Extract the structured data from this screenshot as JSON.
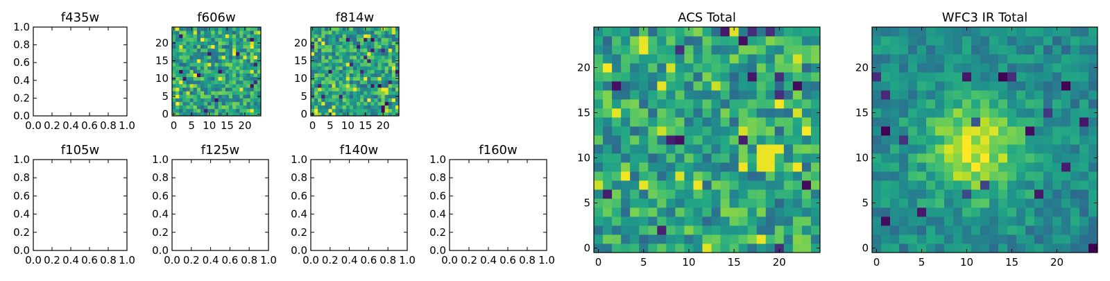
{
  "figure": {
    "panels": [
      "f435w",
      "f606w",
      "f814w",
      "ACS Total",
      "f105w",
      "f125w",
      "f140w",
      "f160w",
      "WFC3 IR Total"
    ]
  },
  "chart_data": [
    {
      "type": "heatmap",
      "title": "f435w",
      "empty": true,
      "xlim": [
        0,
        1
      ],
      "ylim": [
        0,
        1
      ],
      "xticks": [
        0,
        0.2,
        0.4,
        0.6,
        0.8,
        1
      ],
      "xtick_labels": [
        "0.0",
        "0.2",
        "0.4",
        "0.6",
        "0.8",
        "1.0"
      ],
      "yticks": [
        0,
        0.2,
        0.4,
        0.6,
        0.8,
        1
      ],
      "ytick_labels": [
        "0.0",
        "0.2",
        "0.4",
        "0.6",
        "0.8",
        "1.0"
      ]
    },
    {
      "type": "heatmap",
      "title": "f606w",
      "grid_size": 25,
      "seed": 606,
      "structure": "noise",
      "colormap": "viridis",
      "xlim": [
        -0.5,
        24.5
      ],
      "ylim": [
        -0.5,
        24.5
      ],
      "xticks": [
        0,
        5,
        10,
        15,
        20
      ],
      "xtick_labels": [
        "0",
        "5",
        "10",
        "15",
        "20"
      ],
      "yticks": [
        0,
        5,
        10,
        15,
        20
      ],
      "ytick_labels": [
        "0",
        "5",
        "10",
        "15",
        "20"
      ]
    },
    {
      "type": "heatmap",
      "title": "f814w",
      "grid_size": 25,
      "seed": 814,
      "structure": "noise",
      "colormap": "viridis",
      "xlim": [
        -0.5,
        24.5
      ],
      "ylim": [
        -0.5,
        24.5
      ],
      "xticks": [
        0,
        5,
        10,
        15,
        20
      ],
      "xtick_labels": [
        "0",
        "5",
        "10",
        "15",
        "20"
      ],
      "yticks": [
        0,
        5,
        10,
        15,
        20
      ],
      "ytick_labels": [
        "0",
        "5",
        "10",
        "15",
        "20"
      ]
    },
    {
      "type": "heatmap",
      "title": "ACS Total",
      "grid_size": 25,
      "seed": 1001,
      "structure": "noise_bright_spot",
      "bright_spot": [
        18.5,
        10
      ],
      "colormap": "viridis",
      "xlim": [
        -0.5,
        24.5
      ],
      "ylim": [
        -0.5,
        24.5
      ],
      "xticks": [
        0,
        5,
        10,
        15,
        20
      ],
      "xtick_labels": [
        "0",
        "5",
        "10",
        "15",
        "20"
      ],
      "yticks": [
        0,
        5,
        10,
        15,
        20
      ],
      "ytick_labels": [
        "0",
        "5",
        "10",
        "15",
        "20"
      ]
    },
    {
      "type": "heatmap",
      "title": "f105w",
      "empty": true,
      "xlim": [
        0,
        1
      ],
      "ylim": [
        0,
        1
      ],
      "xticks": [
        0,
        0.2,
        0.4,
        0.6,
        0.8,
        1
      ],
      "xtick_labels": [
        "0.0",
        "0.2",
        "0.4",
        "0.6",
        "0.8",
        "1.0"
      ],
      "yticks": [
        0,
        0.2,
        0.4,
        0.6,
        0.8,
        1
      ],
      "ytick_labels": [
        "0.0",
        "0.2",
        "0.4",
        "0.6",
        "0.8",
        "1.0"
      ]
    },
    {
      "type": "heatmap",
      "title": "f125w",
      "empty": true,
      "xlim": [
        0,
        1
      ],
      "ylim": [
        0,
        1
      ],
      "xticks": [
        0,
        0.2,
        0.4,
        0.6,
        0.8,
        1
      ],
      "xtick_labels": [
        "0.0",
        "0.2",
        "0.4",
        "0.6",
        "0.8",
        "1.0"
      ],
      "yticks": [
        0,
        0.2,
        0.4,
        0.6,
        0.8,
        1
      ],
      "ytick_labels": [
        "0.0",
        "0.2",
        "0.4",
        "0.6",
        "0.8",
        "1.0"
      ]
    },
    {
      "type": "heatmap",
      "title": "f140w",
      "empty": true,
      "xlim": [
        0,
        1
      ],
      "ylim": [
        0,
        1
      ],
      "xticks": [
        0,
        0.2,
        0.4,
        0.6,
        0.8,
        1
      ],
      "xtick_labels": [
        "0.0",
        "0.2",
        "0.4",
        "0.6",
        "0.8",
        "1.0"
      ],
      "yticks": [
        0,
        0.2,
        0.4,
        0.6,
        0.8,
        1
      ],
      "ytick_labels": [
        "0.0",
        "0.2",
        "0.4",
        "0.6",
        "0.8",
        "1.0"
      ]
    },
    {
      "type": "heatmap",
      "title": "f160w",
      "empty": true,
      "xlim": [
        0,
        1
      ],
      "ylim": [
        0,
        1
      ],
      "xticks": [
        0,
        0.2,
        0.4,
        0.6,
        0.8,
        1
      ],
      "xtick_labels": [
        "0.0",
        "0.2",
        "0.4",
        "0.6",
        "0.8",
        "1.0"
      ],
      "yticks": [
        0,
        0.2,
        0.4,
        0.6,
        0.8,
        1
      ],
      "ytick_labels": [
        "0.0",
        "0.2",
        "0.4",
        "0.6",
        "0.8",
        "1.0"
      ]
    },
    {
      "type": "heatmap",
      "title": "WFC3 IR Total",
      "grid_size": 25,
      "seed": 2002,
      "structure": "smooth_blob",
      "blob_center": [
        11,
        11
      ],
      "colormap": "viridis",
      "xlim": [
        -0.5,
        24.5
      ],
      "ylim": [
        -0.5,
        24.5
      ],
      "xticks": [
        0,
        5,
        10,
        15,
        20
      ],
      "xtick_labels": [
        "0",
        "5",
        "10",
        "15",
        "20"
      ],
      "yticks": [
        0,
        5,
        10,
        15,
        20
      ],
      "ytick_labels": [
        "0",
        "5",
        "10",
        "15",
        "20"
      ]
    }
  ]
}
